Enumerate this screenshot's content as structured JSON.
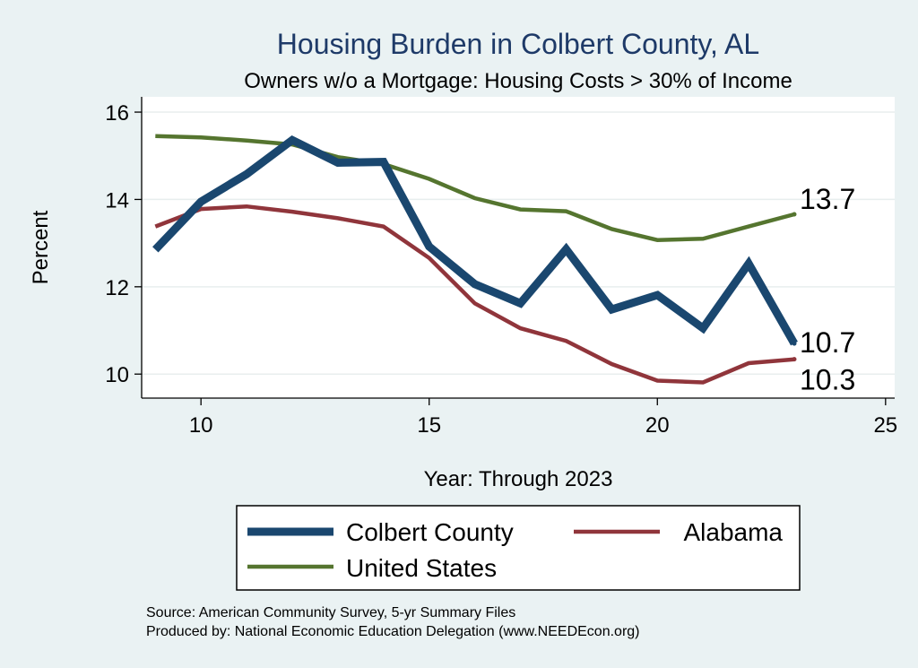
{
  "chart_data": {
    "type": "line",
    "title": "Housing Burden in Colbert County, AL",
    "subtitle": "Owners w/o a Mortgage: Housing Costs > 30% of Income",
    "xlabel": "Year: Through 2023",
    "ylabel": "Percent",
    "xlim": [
      8.7,
      25.2
    ],
    "ylim": [
      9.45,
      16.35
    ],
    "x_ticks": [
      10,
      15,
      20,
      25
    ],
    "y_ticks": [
      10,
      12,
      14,
      16
    ],
    "grid": true,
    "legend_position": "bottom",
    "x": [
      9,
      10,
      11,
      12,
      13,
      14,
      15,
      16,
      17,
      18,
      19,
      20,
      21,
      22,
      23
    ],
    "series": [
      {
        "name": "Colbert County",
        "color": "#1a476f",
        "values": [
          12.85,
          13.95,
          14.58,
          15.36,
          14.84,
          14.86,
          12.92,
          12.06,
          11.62,
          12.86,
          11.48,
          11.81,
          11.05,
          12.53,
          10.7
        ],
        "end_label": "10.7"
      },
      {
        "name": "Alabama",
        "color": "#90353b",
        "values": [
          13.38,
          13.78,
          13.84,
          13.72,
          13.57,
          13.38,
          12.66,
          11.62,
          11.05,
          10.76,
          10.23,
          9.85,
          9.81,
          10.25,
          10.34
        ],
        "end_label": "10.3"
      },
      {
        "name": "United States",
        "color": "#55752f",
        "values": [
          15.45,
          15.42,
          15.35,
          15.26,
          14.97,
          14.81,
          14.47,
          14.03,
          13.77,
          13.73,
          13.32,
          13.07,
          13.1,
          13.38,
          13.66
        ],
        "end_label": "13.7"
      }
    ]
  },
  "footer": {
    "source": "Source: American Community Survey, 5-yr Summary Files",
    "producer": "Produced by: National Economic Education Delegation (www.NEEDEcon.org)"
  }
}
